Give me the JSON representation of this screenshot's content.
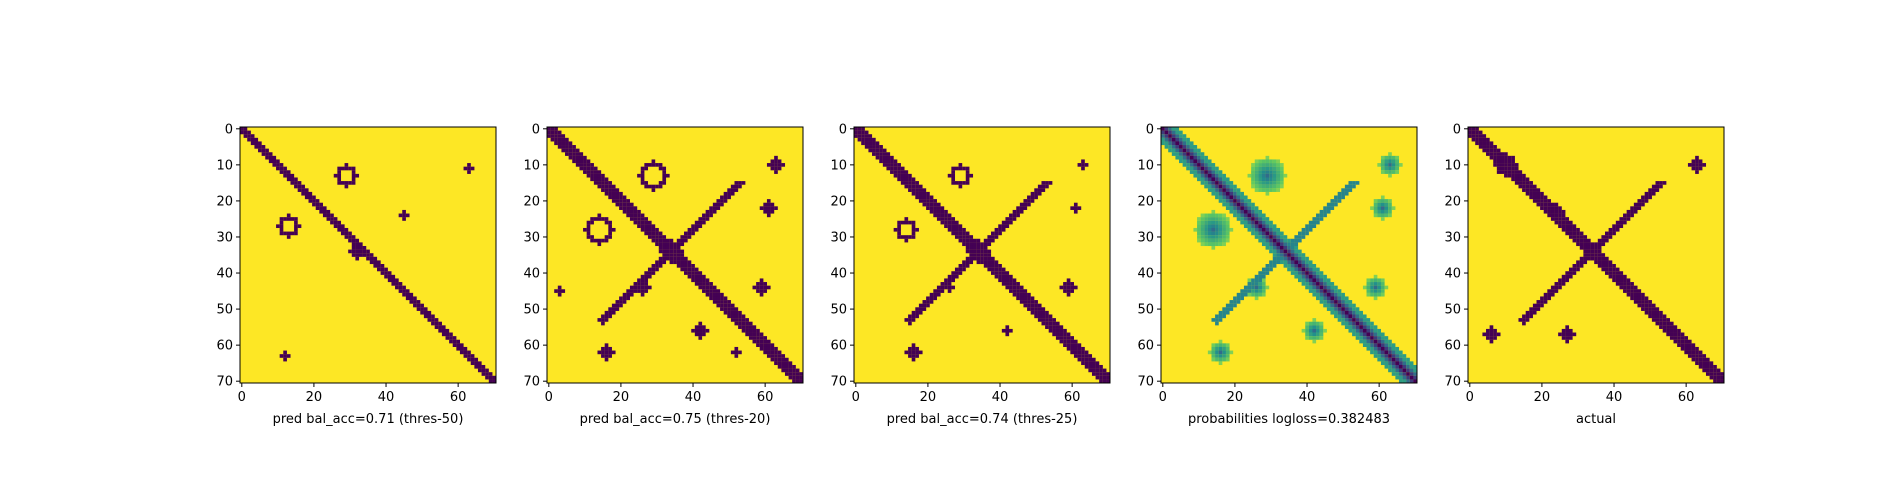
{
  "chart_data": [
    {
      "type": "heatmap",
      "xlabel": "pred bal_acc=0.71 (thres-50)",
      "ticks": [
        0,
        20,
        40,
        60
      ],
      "yticks": [
        0,
        10,
        20,
        30,
        40,
        50,
        60,
        70
      ],
      "xlim": [
        0,
        70
      ],
      "ylim": [
        70,
        0
      ],
      "colormap": "viridis-binary",
      "diagonal_band_halfwidth": 1,
      "anti_diagonal": false,
      "blobs": [
        {
          "row": 13,
          "col": 29,
          "r": 3
        },
        {
          "row": 27,
          "col": 13,
          "r": 3
        },
        {
          "row": 34,
          "col": 32,
          "r": 2
        },
        {
          "row": 63,
          "col": 12,
          "r": 1
        },
        {
          "row": 11,
          "col": 63,
          "r": 1
        },
        {
          "row": 24,
          "col": 45,
          "r": 1
        }
      ]
    },
    {
      "type": "heatmap",
      "xlabel": "pred bal_acc=0.75 (thres-20)",
      "ticks": [
        0,
        20,
        40,
        60
      ],
      "yticks": [
        0,
        10,
        20,
        30,
        40,
        50,
        60,
        70
      ],
      "xlim": [
        0,
        70
      ],
      "ylim": [
        70,
        0
      ],
      "colormap": "viridis-binary",
      "diagonal_band_halfwidth": 2,
      "anti_diagonal": true,
      "blobs": [
        {
          "row": 13,
          "col": 29,
          "r": 4
        },
        {
          "row": 28,
          "col": 14,
          "r": 4
        },
        {
          "row": 34,
          "col": 34,
          "r": 3
        },
        {
          "row": 44,
          "col": 26,
          "r": 2
        },
        {
          "row": 44,
          "col": 59,
          "r": 2
        },
        {
          "row": 56,
          "col": 42,
          "r": 2
        },
        {
          "row": 62,
          "col": 16,
          "r": 2
        },
        {
          "row": 62,
          "col": 52,
          "r": 1
        },
        {
          "row": 10,
          "col": 63,
          "r": 2
        },
        {
          "row": 22,
          "col": 61,
          "r": 2
        },
        {
          "row": 45,
          "col": 3,
          "r": 1
        }
      ]
    },
    {
      "type": "heatmap",
      "xlabel": "pred bal_acc=0.74 (thres-25)",
      "ticks": [
        0,
        20,
        40,
        60
      ],
      "yticks": [
        0,
        10,
        20,
        30,
        40,
        50,
        60,
        70
      ],
      "xlim": [
        0,
        70
      ],
      "ylim": [
        70,
        0
      ],
      "colormap": "viridis-binary",
      "diagonal_band_halfwidth": 2,
      "anti_diagonal": true,
      "blobs": [
        {
          "row": 13,
          "col": 29,
          "r": 3
        },
        {
          "row": 28,
          "col": 14,
          "r": 3
        },
        {
          "row": 34,
          "col": 34,
          "r": 3
        },
        {
          "row": 44,
          "col": 26,
          "r": 1
        },
        {
          "row": 44,
          "col": 59,
          "r": 2
        },
        {
          "row": 56,
          "col": 42,
          "r": 1
        },
        {
          "row": 62,
          "col": 16,
          "r": 2
        },
        {
          "row": 10,
          "col": 63,
          "r": 1
        },
        {
          "row": 22,
          "col": 61,
          "r": 1
        }
      ]
    },
    {
      "type": "heatmap",
      "xlabel": "probabilities logloss=0.382483",
      "ticks": [
        0,
        20,
        40,
        60
      ],
      "yticks": [
        0,
        10,
        20,
        30,
        40,
        50,
        60,
        70
      ],
      "xlim": [
        0,
        70
      ],
      "ylim": [
        70,
        0
      ],
      "colormap": "viridis-continuous",
      "diagonal_band_halfwidth": 2,
      "anti_diagonal": true,
      "blobs": [
        {
          "row": 13,
          "col": 29,
          "r": 5
        },
        {
          "row": 28,
          "col": 14,
          "r": 5
        },
        {
          "row": 34,
          "col": 34,
          "r": 4
        },
        {
          "row": 44,
          "col": 26,
          "r": 3
        },
        {
          "row": 44,
          "col": 59,
          "r": 3
        },
        {
          "row": 56,
          "col": 42,
          "r": 3
        },
        {
          "row": 62,
          "col": 16,
          "r": 3
        },
        {
          "row": 10,
          "col": 63,
          "r": 3
        },
        {
          "row": 22,
          "col": 61,
          "r": 3
        },
        {
          "row": 60,
          "col": 60,
          "r": 3
        }
      ]
    },
    {
      "type": "heatmap",
      "xlabel": "actual",
      "ticks": [
        0,
        20,
        40,
        60
      ],
      "yticks": [
        0,
        10,
        20,
        30,
        40,
        50,
        60,
        70
      ],
      "xlim": [
        0,
        70
      ],
      "ylim": [
        70,
        0
      ],
      "colormap": "viridis-binary",
      "diagonal_band_halfwidth": 2,
      "anti_diagonal": true,
      "blobs": [
        {
          "row": 10,
          "col": 10,
          "r": 3
        },
        {
          "row": 23,
          "col": 24,
          "r": 2
        },
        {
          "row": 34,
          "col": 34,
          "r": 2
        },
        {
          "row": 57,
          "col": 6,
          "r": 2
        },
        {
          "row": 57,
          "col": 27,
          "r": 2
        },
        {
          "row": 10,
          "col": 63,
          "r": 2
        }
      ]
    }
  ],
  "colors": {
    "low": "#440154",
    "high": "#fde725",
    "mid": "#21918c",
    "mid2": "#5ec962"
  }
}
